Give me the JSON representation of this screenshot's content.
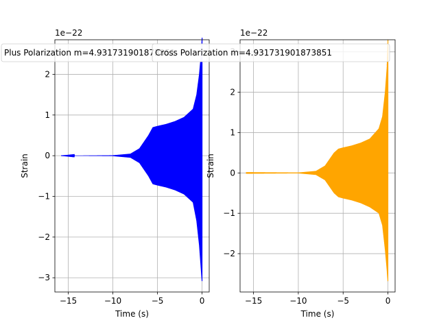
{
  "chart_data": [
    {
      "type": "line",
      "xlabel": "Time (s)",
      "ylabel": "Strain",
      "offset_text": "1e−22",
      "xlim": [
        -16.5,
        0.8
      ],
      "ylim": [
        -3.35,
        2.85
      ],
      "x_ticks": [
        -15,
        -10,
        -5,
        0
      ],
      "x_tick_labels": [
        "−15",
        "−10",
        "−5",
        "0"
      ],
      "y_ticks": [
        -3,
        -2,
        -1,
        0,
        1,
        2
      ],
      "y_tick_labels": [
        "−3",
        "−2",
        "−1",
        "0",
        "1",
        "2"
      ],
      "grid": true,
      "legend": {
        "label": "Plus Polarization m=4.931731901873851",
        "placement": "top"
      },
      "series": [
        {
          "name": "Plus Polarization m=4.931731901873851",
          "color": "#0000ff",
          "x_range": [
            -15.8,
            0
          ],
          "envelope_upper": [
            [
              -15.8,
              0.0
            ],
            [
              -10,
              0.01
            ],
            [
              -8,
              0.05
            ],
            [
              -7,
              0.18
            ],
            [
              -6,
              0.5
            ],
            [
              -5.5,
              0.7
            ],
            [
              -5,
              0.73
            ],
            [
              -4,
              0.78
            ],
            [
              -3,
              0.85
            ],
            [
              -2,
              0.95
            ],
            [
              -1,
              1.15
            ],
            [
              -0.6,
              1.5
            ],
            [
              -0.3,
              2.0
            ],
            [
              -0.1,
              2.5
            ],
            [
              0,
              2.9
            ]
          ],
          "envelope_lower": [
            [
              -15.8,
              0.0
            ],
            [
              -10,
              -0.01
            ],
            [
              -8,
              -0.05
            ],
            [
              -7,
              -0.18
            ],
            [
              -6,
              -0.5
            ],
            [
              -5.5,
              -0.7
            ],
            [
              -5,
              -0.73
            ],
            [
              -4,
              -0.78
            ],
            [
              -3,
              -0.85
            ],
            [
              -2,
              -0.95
            ],
            [
              -1,
              -1.15
            ],
            [
              -0.6,
              -1.6
            ],
            [
              -0.3,
              -2.2
            ],
            [
              -0.1,
              -2.8
            ],
            [
              0,
              -3.1
            ]
          ]
        }
      ]
    },
    {
      "type": "line",
      "xlabel": "Time (s)",
      "ylabel": "Strain",
      "offset_text": "1e−22",
      "xlim": [
        -16.5,
        0.8
      ],
      "ylim": [
        -2.95,
        3.3
      ],
      "x_ticks": [
        -15,
        -10,
        -5,
        0
      ],
      "x_tick_labels": [
        "−15",
        "−10",
        "−5",
        "0"
      ],
      "y_ticks": [
        -2,
        -1,
        0,
        1,
        2,
        3
      ],
      "y_tick_labels": [
        "−2",
        "−1",
        "0",
        "1",
        "2",
        "3"
      ],
      "grid": true,
      "legend": {
        "label": "Cross Polarization m=4.931731901873851",
        "placement": "top"
      },
      "series": [
        {
          "name": "Cross Polarization m=4.931731901873851",
          "color": "#ffa500",
          "x_range": [
            -15.8,
            0
          ],
          "envelope_upper": [
            [
              -15.8,
              0.02
            ],
            [
              -10,
              0.01
            ],
            [
              -8,
              0.05
            ],
            [
              -7,
              0.18
            ],
            [
              -6,
              0.5
            ],
            [
              -5.5,
              0.6
            ],
            [
              -5,
              0.63
            ],
            [
              -4,
              0.68
            ],
            [
              -3,
              0.75
            ],
            [
              -2,
              0.85
            ],
            [
              -1,
              1.1
            ],
            [
              -0.6,
              1.4
            ],
            [
              -0.3,
              2.0
            ],
            [
              -0.1,
              2.6
            ],
            [
              0,
              3.3
            ]
          ],
          "envelope_lower": [
            [
              -15.8,
              -0.02
            ],
            [
              -10,
              -0.01
            ],
            [
              -8,
              -0.05
            ],
            [
              -7,
              -0.18
            ],
            [
              -6,
              -0.5
            ],
            [
              -5.5,
              -0.6
            ],
            [
              -5,
              -0.63
            ],
            [
              -4,
              -0.68
            ],
            [
              -3,
              -0.75
            ],
            [
              -2,
              -0.85
            ],
            [
              -1,
              -1.0
            ],
            [
              -0.6,
              -1.3
            ],
            [
              -0.3,
              -1.9
            ],
            [
              -0.1,
              -2.4
            ],
            [
              0,
              -2.7
            ]
          ]
        }
      ]
    }
  ]
}
